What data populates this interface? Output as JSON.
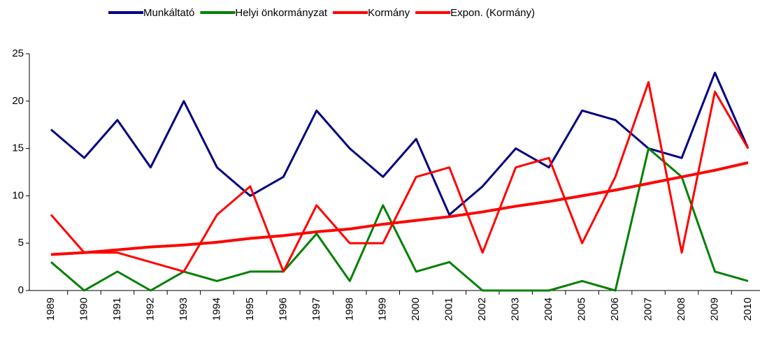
{
  "chart_data": {
    "type": "line",
    "categories": [
      "1989",
      "1990",
      "1991",
      "1992",
      "1993",
      "1994",
      "1995",
      "1996",
      "1997",
      "1998",
      "1999",
      "2000",
      "2001",
      "2002",
      "2003",
      "2004",
      "2005",
      "2006",
      "2007",
      "2008",
      "2009",
      "2010"
    ],
    "series": [
      {
        "name": "Munkáltató",
        "color": "#000080",
        "values": [
          17,
          14,
          18,
          13,
          20,
          13,
          10,
          12,
          19,
          15,
          12,
          16,
          8,
          11,
          15,
          13,
          19,
          18,
          15,
          14,
          23,
          15
        ]
      },
      {
        "name": "Helyi önkormányzat",
        "color": "#008000",
        "values": [
          3,
          0,
          2,
          0,
          2,
          1,
          2,
          2,
          6,
          1,
          9,
          2,
          3,
          0,
          0,
          0,
          1,
          0,
          15,
          12,
          2,
          1
        ]
      },
      {
        "name": "Kormány",
        "color": "#ff0000",
        "values": [
          8,
          4,
          4,
          3,
          2,
          8,
          11,
          2,
          9,
          5,
          5,
          12,
          13,
          4,
          13,
          14,
          5,
          12,
          22,
          4,
          21,
          15
        ]
      },
      {
        "name": "Expon. (Kormány)",
        "color": "#ff0000",
        "values": [
          3.8,
          4.0,
          4.3,
          4.6,
          4.8,
          5.1,
          5.5,
          5.8,
          6.2,
          6.5,
          7.0,
          7.4,
          7.8,
          8.3,
          8.9,
          9.4,
          10.0,
          10.6,
          11.3,
          12.0,
          12.7,
          13.5
        ]
      }
    ],
    "ylim": [
      0,
      25
    ],
    "yticks": [
      0,
      5,
      10,
      15,
      20,
      25
    ],
    "legend": "top"
  }
}
